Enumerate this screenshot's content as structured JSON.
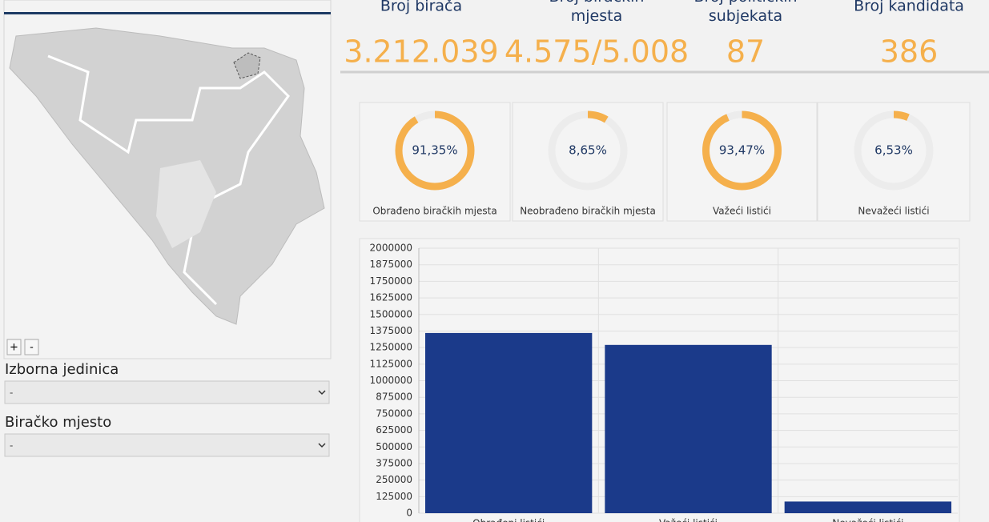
{
  "zoom": [
    "+",
    "-"
  ],
  "filters": [
    {
      "label": "Izborna jedinica",
      "value": "-"
    },
    {
      "label": "Biračko mjesto",
      "value": "-"
    }
  ],
  "stats": [
    {
      "label": "Broj birača",
      "value": "3.212.039"
    },
    {
      "label": "Broj biračkih mjesta",
      "value": "4.575/5.008"
    },
    {
      "label": "Broj političkih subjekata",
      "value": "87"
    },
    {
      "label": "Broj kandidata",
      "value": "386"
    }
  ],
  "chart_data": [
    {
      "type": "donut",
      "caption": "Obrađeno biračkih mjesta",
      "values": [
        91.35
      ],
      "value_labels": [
        "91,35%"
      ],
      "color": "#f5b04c"
    },
    {
      "type": "donut",
      "caption": "Neobrađeno biračkih mjesta",
      "values": [
        8.65
      ],
      "value_labels": [
        "8,65%"
      ],
      "color": "#f5b04c"
    },
    {
      "type": "donut",
      "caption": "Važeći listići",
      "values": [
        93.47
      ],
      "value_labels": [
        "93,47%"
      ],
      "color": "#f5b04c"
    },
    {
      "type": "donut",
      "caption": "Nevažeći listići",
      "values": [
        6.53
      ],
      "value_labels": [
        "6,53%"
      ],
      "color": "#f5b04c"
    },
    {
      "type": "bar",
      "categories": [
        "Obrađeni listići",
        "Važeći listići",
        "Nevažeći listići"
      ],
      "values": [
        1360000,
        1270000,
        88000
      ],
      "color": "#1b3a8a",
      "ylim": [
        0,
        2000000
      ],
      "yticks": [
        0,
        125000,
        250000,
        375000,
        500000,
        625000,
        750000,
        875000,
        1000000,
        1125000,
        1250000,
        1375000,
        1500000,
        1625000,
        1750000,
        1875000,
        2000000
      ],
      "grid": true
    }
  ]
}
